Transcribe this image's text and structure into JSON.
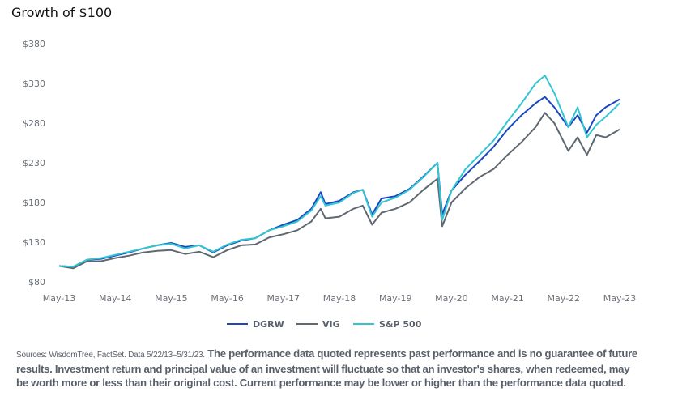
{
  "chart_data": {
    "type": "line",
    "title": "Growth of $100",
    "xlabel": "",
    "ylabel": "",
    "ylim": [
      80,
      380
    ],
    "yticks": [
      "$80",
      "$130",
      "$180",
      "$230",
      "$280",
      "$330",
      "$380"
    ],
    "ytick_values": [
      80,
      130,
      180,
      230,
      280,
      330,
      380
    ],
    "xticks": [
      "May-13",
      "May-14",
      "May-15",
      "May-16",
      "May-17",
      "May-18",
      "May-19",
      "May-20",
      "May-21",
      "May-22",
      "May-23"
    ],
    "xlim": [
      "2013-05",
      "2023-05"
    ],
    "grid": false,
    "legend_position": "bottom",
    "x": [
      "2013-05",
      "2013-08",
      "2013-11",
      "2014-02",
      "2014-05",
      "2014-08",
      "2014-11",
      "2015-02",
      "2015-05",
      "2015-08",
      "2015-11",
      "2016-02",
      "2016-05",
      "2016-08",
      "2016-11",
      "2017-02",
      "2017-05",
      "2017-08",
      "2017-11",
      "2018-01",
      "2018-02",
      "2018-05",
      "2018-08",
      "2018-10",
      "2018-12",
      "2019-02",
      "2019-05",
      "2019-08",
      "2019-11",
      "2020-02",
      "2020-03",
      "2020-05",
      "2020-08",
      "2020-11",
      "2021-02",
      "2021-05",
      "2021-08",
      "2021-11",
      "2022-01",
      "2022-03",
      "2022-06",
      "2022-08",
      "2022-10",
      "2022-12",
      "2023-02",
      "2023-05"
    ],
    "series": [
      {
        "name": "DGRW",
        "color": "#1a47c0",
        "values": [
          100,
          99,
          108,
          109,
          113,
          117,
          122,
          126,
          129,
          124,
          126,
          117,
          126,
          132,
          135,
          145,
          152,
          158,
          172,
          193,
          178,
          182,
          193,
          196,
          165,
          185,
          188,
          197,
          213,
          230,
          165,
          195,
          215,
          232,
          250,
          272,
          290,
          305,
          313,
          300,
          275,
          290,
          268,
          290,
          300,
          310
        ]
      },
      {
        "name": "VIG",
        "color": "#5f6770",
        "values": [
          100,
          97,
          106,
          106,
          110,
          113,
          117,
          119,
          120,
          115,
          118,
          111,
          120,
          126,
          127,
          136,
          140,
          145,
          156,
          172,
          160,
          162,
          172,
          176,
          152,
          167,
          172,
          180,
          196,
          210,
          150,
          180,
          198,
          212,
          222,
          240,
          256,
          275,
          293,
          280,
          245,
          262,
          240,
          265,
          262,
          272
        ]
      },
      {
        "name": "S&P 500",
        "color": "#33c6d2",
        "values": [
          100,
          99,
          108,
          110,
          114,
          118,
          122,
          126,
          128,
          122,
          126,
          118,
          127,
          133,
          135,
          145,
          150,
          156,
          170,
          188,
          176,
          180,
          192,
          196,
          162,
          180,
          186,
          196,
          212,
          230,
          158,
          195,
          222,
          240,
          258,
          282,
          305,
          330,
          340,
          318,
          275,
          300,
          262,
          278,
          288,
          305
        ]
      }
    ]
  },
  "footer": {
    "sources": "Sources: WisdomTree, FactSet. Data 5/22/13–5/31/23.",
    "disclaimer": "The performance data quoted represents past performance and is no guarantee of future results. Investment return and principal value of an investment will fluctuate so that an investor's shares, when redeemed, may be worth more or less than their original cost. Current performance may be lower or higher than the performance data quoted."
  }
}
